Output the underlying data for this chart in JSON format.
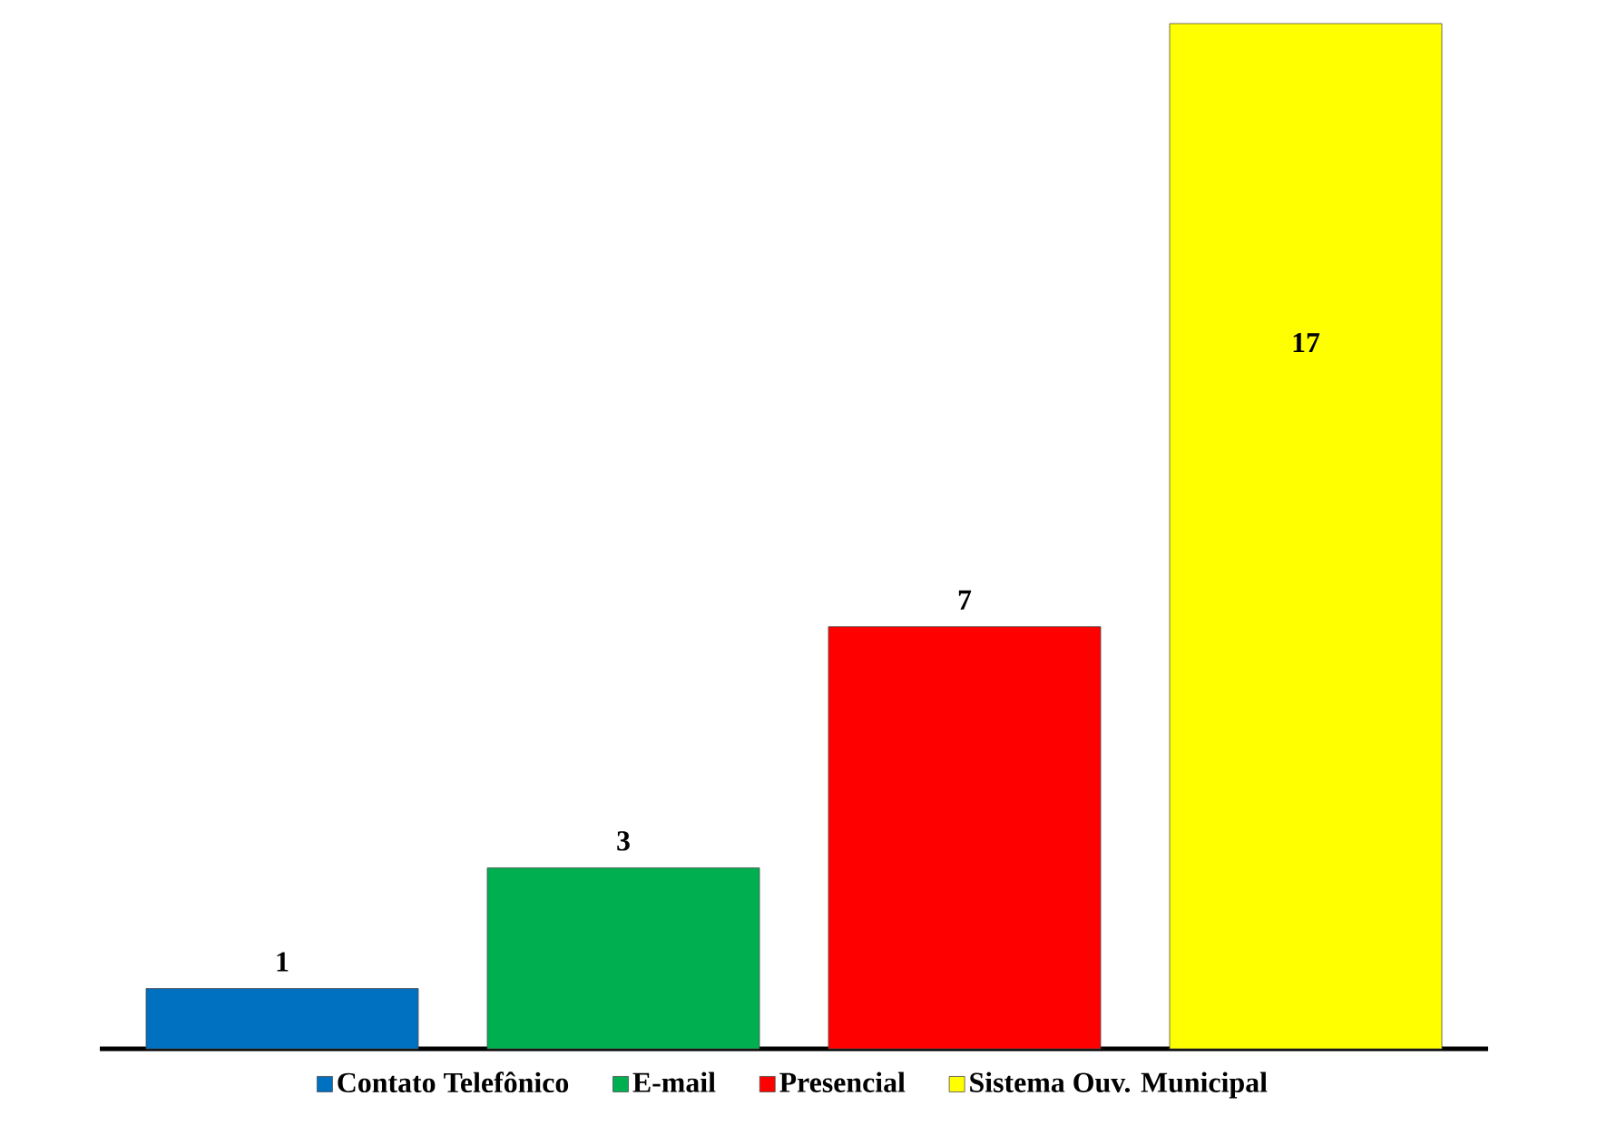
{
  "chart_data": {
    "type": "bar",
    "categories": [
      null
    ],
    "series": [
      {
        "name": "Contato Telefônico",
        "color": "#0070c0",
        "values": [
          1
        ]
      },
      {
        "name": "E-mail",
        "color": "#00b050",
        "values": [
          3
        ]
      },
      {
        "name": "Presencial",
        "color": "#ff0000",
        "values": [
          7
        ]
      },
      {
        "name": "Sistema Ouv. Municipal",
        "color": "#ffff00",
        "values": [
          17
        ]
      }
    ],
    "data_labels": true,
    "legend": "bottom"
  }
}
